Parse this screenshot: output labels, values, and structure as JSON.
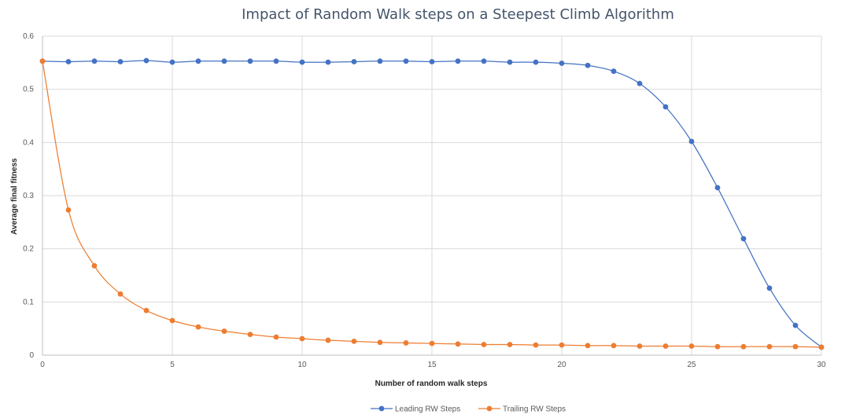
{
  "chart_data": {
    "type": "line",
    "title": "Impact of Random Walk steps on a Steepest Climb Algorithm",
    "xlabel": "Number of random walk steps",
    "ylabel": "Average final fitness",
    "xlim": [
      0,
      30
    ],
    "ylim": [
      0,
      0.6
    ],
    "xticks": [
      0,
      5,
      10,
      15,
      20,
      25,
      30
    ],
    "yticks": [
      0,
      0.1,
      0.2,
      0.3,
      0.4,
      0.5,
      0.6
    ],
    "grid": true,
    "legend_position": "bottom",
    "x": [
      0,
      1,
      2,
      3,
      4,
      5,
      6,
      7,
      8,
      9,
      10,
      11,
      12,
      13,
      14,
      15,
      16,
      17,
      18,
      19,
      20,
      21,
      22,
      23,
      24,
      25,
      26,
      27,
      28,
      29,
      30
    ],
    "series": [
      {
        "name": "Leading RW Steps",
        "color": "#4472c4",
        "values": [
          0.553,
          0.552,
          0.553,
          0.552,
          0.554,
          0.551,
          0.553,
          0.553,
          0.553,
          0.553,
          0.551,
          0.551,
          0.552,
          0.553,
          0.553,
          0.552,
          0.553,
          0.553,
          0.551,
          0.551,
          0.549,
          0.545,
          0.534,
          0.511,
          0.467,
          0.402,
          0.315,
          0.219,
          0.126,
          0.056,
          0.015
        ]
      },
      {
        "name": "Trailing RW Steps",
        "color": "#ed7d31",
        "values": [
          0.553,
          0.273,
          0.168,
          0.115,
          0.084,
          0.065,
          0.053,
          0.045,
          0.039,
          0.034,
          0.031,
          0.028,
          0.026,
          0.024,
          0.023,
          0.022,
          0.021,
          0.02,
          0.02,
          0.019,
          0.019,
          0.018,
          0.018,
          0.017,
          0.017,
          0.017,
          0.016,
          0.016,
          0.016,
          0.016,
          0.015
        ]
      }
    ]
  }
}
